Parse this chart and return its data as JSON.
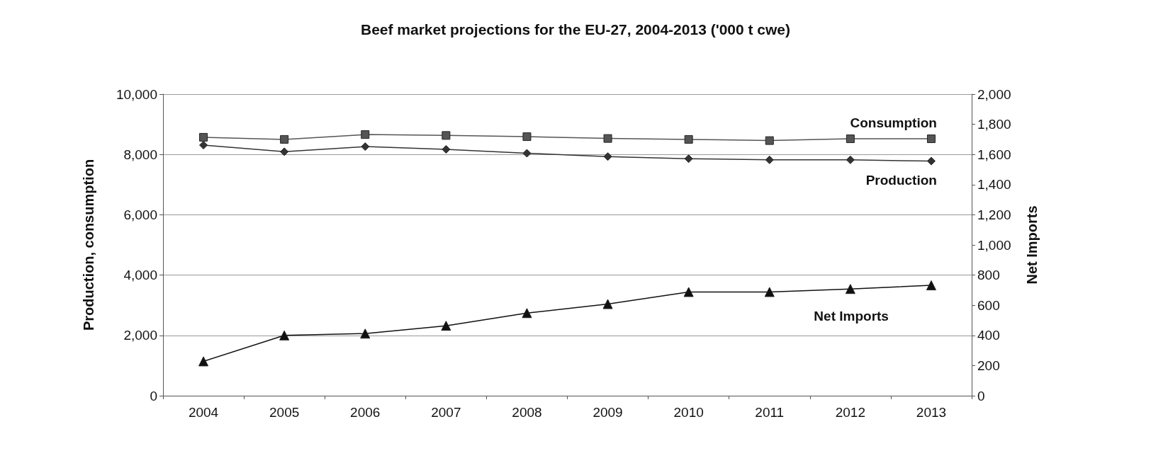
{
  "chart_data": {
    "type": "line",
    "title": "Beef market projections for the EU-27, 2004-2013 ('000 t cwe)",
    "ylabel": "Production, consumption",
    "y2label": "Net Imports",
    "categories": [
      "2004",
      "2005",
      "2006",
      "2007",
      "2008",
      "2009",
      "2010",
      "2011",
      "2012",
      "2013"
    ],
    "series": [
      {
        "name": "Consumption",
        "color": "#555555",
        "marker": "square",
        "values": [
          8570,
          8500,
          8660,
          8630,
          8590,
          8530,
          8500,
          8460,
          8520,
          8520
        ]
      },
      {
        "name": "Production",
        "color": "#333333",
        "marker": "diamond",
        "values": [
          8310,
          8090,
          8260,
          8170,
          8040,
          7930,
          7860,
          7820,
          7820,
          7780
        ]
      },
      {
        "name": "Net Imports",
        "color": "#111111",
        "marker": "triangle",
        "axis": "y2",
        "values": [
          228,
          400,
          412,
          464,
          548,
          608,
          688,
          688,
          708,
          732
        ]
      }
    ],
    "ylim": [
      0,
      10000
    ],
    "yticks": [
      0,
      {
        "value": 2000,
        "label": "2,000"
      },
      {
        "value": 4000,
        "label": "4,000"
      },
      {
        "value": 6000,
        "label": "6,000"
      },
      {
        "value": 8000,
        "label": "8,000"
      },
      {
        "value": 10000,
        "label": "10,000"
      }
    ],
    "y2lim": [
      0,
      2000
    ],
    "y2ticks": [
      0,
      200,
      400,
      600,
      800,
      {
        "value": 1000,
        "label": "1,000"
      },
      {
        "value": 1200,
        "label": "1,200"
      },
      {
        "value": 1400,
        "label": "1,400"
      },
      {
        "value": 1600,
        "label": "1,600"
      },
      {
        "value": 1800,
        "label": "1,800"
      },
      {
        "value": 2000,
        "label": "2,000"
      }
    ],
    "grid": "y",
    "legend": false,
    "line_style": "solid"
  }
}
